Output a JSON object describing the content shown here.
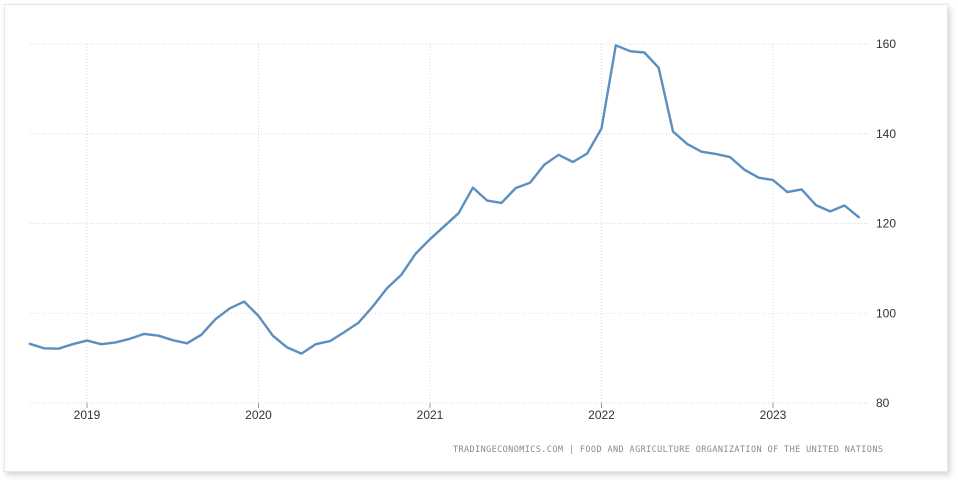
{
  "chart_data": {
    "type": "line",
    "title": "",
    "xlabel": "",
    "ylabel": "",
    "ylim": [
      80,
      160
    ],
    "yticks": [
      "80",
      "100",
      "120",
      "140",
      "160"
    ],
    "xticks": [
      "2019",
      "2020",
      "2021",
      "2022",
      "2023"
    ],
    "grid": true,
    "y_axis_position": "right",
    "series_color": "#5b8fc0",
    "series": [
      {
        "x": [
          "2018-09",
          "2018-10",
          "2018-11",
          "2018-12",
          "2019-01",
          "2019-02",
          "2019-03",
          "2019-04",
          "2019-05",
          "2019-06",
          "2019-07",
          "2019-08",
          "2019-09",
          "2019-10",
          "2019-11",
          "2019-12",
          "2020-01",
          "2020-02",
          "2020-03",
          "2020-04",
          "2020-05",
          "2020-06",
          "2020-07",
          "2020-08",
          "2020-09",
          "2020-10",
          "2020-11",
          "2020-12",
          "2021-01",
          "2021-02",
          "2021-03",
          "2021-04",
          "2021-05",
          "2021-06",
          "2021-07",
          "2021-08",
          "2021-09",
          "2021-10",
          "2021-11",
          "2021-12",
          "2022-01",
          "2022-02",
          "2022-03",
          "2022-04",
          "2022-05",
          "2022-06",
          "2022-07",
          "2022-08",
          "2022-09",
          "2022-10",
          "2022-11",
          "2022-12",
          "2023-01",
          "2023-02",
          "2023-03",
          "2023-04",
          "2023-05",
          "2023-06",
          "2023-07"
        ],
        "values": [
          93.2,
          92.2,
          92.1,
          93.1,
          93.9,
          93.1,
          93.5,
          94.3,
          95.4,
          95.0,
          94.0,
          93.3,
          95.2,
          98.7,
          101.1,
          102.6,
          99.4,
          95.0,
          92.4,
          91.0,
          93.1,
          93.8,
          95.8,
          97.9,
          101.5,
          105.6,
          108.6,
          113.3,
          116.5,
          119.4,
          122.3,
          128.0,
          125.1,
          124.6,
          127.9,
          129.1,
          133.1,
          135.3,
          133.7,
          135.6,
          141.2,
          159.7,
          158.4,
          158.1,
          154.7,
          140.5,
          137.7,
          136.0,
          135.5,
          134.8,
          132.0,
          130.2,
          129.7,
          127.0,
          127.6,
          124.1,
          122.7,
          124.0,
          121.4
        ]
      }
    ]
  },
  "footer": {
    "source_text": "TRADINGECONOMICS.COM  |  FOOD AND AGRICULTURE ORGANIZATION OF THE UNITED NATIONS"
  }
}
